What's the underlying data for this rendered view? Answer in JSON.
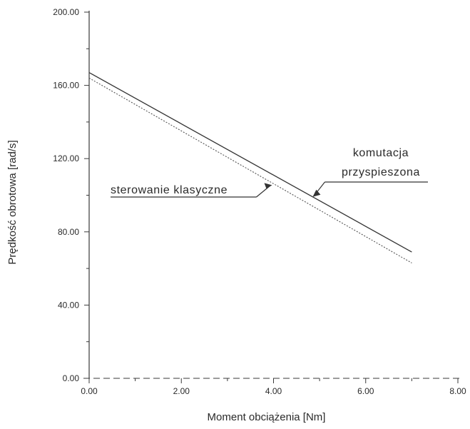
{
  "chart_data": {
    "type": "line",
    "title": "",
    "xlabel": "Moment obciążenia [Nm]",
    "ylabel": "Prędkość obrotowa [rad/s]",
    "xlim": [
      0,
      8
    ],
    "ylim": [
      0,
      200
    ],
    "x_ticks": [
      0,
      2,
      4,
      6,
      8
    ],
    "y_ticks": [
      0,
      40,
      80,
      120,
      160,
      200
    ],
    "x_tick_labels": [
      "0.00",
      "2.00",
      "4.00",
      "6.00",
      "8.00"
    ],
    "y_tick_labels": [
      "0.00",
      "40.00",
      "80.00",
      "120.00",
      "160.00",
      "200.00"
    ],
    "grid": false,
    "series": [
      {
        "name": "komutacja przyspieszona",
        "style": "solid",
        "color": "#333333",
        "x": [
          0,
          7
        ],
        "y": [
          167,
          69
        ]
      },
      {
        "name": "sterowanie klasyczne",
        "style": "dotted",
        "color": "#555555",
        "x": [
          0,
          7
        ],
        "y": [
          164,
          63
        ]
      }
    ],
    "annotations": [
      {
        "lines": [
          "komutacja",
          "przyspieszona"
        ],
        "target_series": 0,
        "target_x": 4.85
      },
      {
        "lines": [
          "sterowanie klasyczne"
        ],
        "target_series": 1,
        "target_x": 4.0
      }
    ]
  }
}
